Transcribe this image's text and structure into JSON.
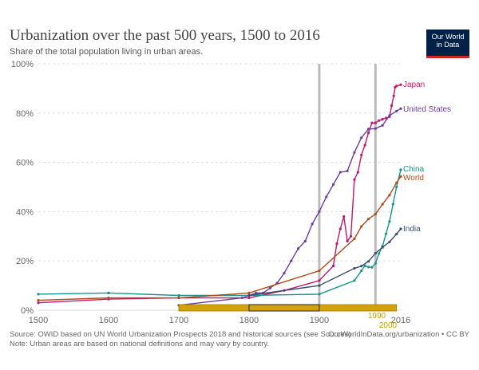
{
  "header": {
    "title": "Urbanization over the past 500 years, 1500 to 2016",
    "subtitle": "Share of the total population living in urban areas.",
    "logo_line1": "Our World",
    "logo_line2": "in Data"
  },
  "footer": {
    "source": "Source: OWID based on UN World Urbanization Prospects 2018 and historical sources (see Sources)",
    "note": "Note: Urban areas are based on national definitions and may vary by country.",
    "url": "OurWorldInData.org/urbanization • CC BY"
  },
  "colors": {
    "Japan": "#c2186b",
    "United States": "#6b3e9e",
    "China": "#16958f",
    "World": "#b04a1a",
    "India": "#3d4c6f",
    "timeline": "#d4a20c",
    "marker": "#bbbbbb"
  },
  "timeline": {
    "start_label": "1990",
    "end_label": "2000",
    "range_start": 1700,
    "range_end": 2010,
    "highlight_start": 1800,
    "highlight_end": 1900
  },
  "chart_data": {
    "type": "line",
    "x_range": [
      1500,
      2016
    ],
    "ylim": [
      0,
      100
    ],
    "y_ticks": [
      "0%",
      "20%",
      "40%",
      "60%",
      "80%",
      "100%"
    ],
    "y_tick_values": [
      0,
      20,
      40,
      60,
      80,
      100
    ],
    "x_ticks": [
      "1500",
      "1600",
      "1700",
      "1800",
      "1900",
      "2016"
    ],
    "x_tick_values": [
      1500,
      1600,
      1700,
      1800,
      1900,
      2016
    ],
    "marker_lines": [
      1900,
      1980
    ],
    "series": [
      {
        "name": "Japan",
        "points": [
          [
            1500,
            3
          ],
          [
            1600,
            4.5
          ],
          [
            1700,
            5
          ],
          [
            1800,
            5
          ],
          [
            1850,
            8
          ],
          [
            1900,
            12
          ],
          [
            1920,
            18
          ],
          [
            1925,
            27
          ],
          [
            1930,
            33
          ],
          [
            1935,
            38
          ],
          [
            1940,
            28
          ],
          [
            1945,
            30
          ],
          [
            1950,
            53
          ],
          [
            1955,
            56
          ],
          [
            1960,
            63
          ],
          [
            1965,
            67
          ],
          [
            1970,
            72
          ],
          [
            1975,
            76
          ],
          [
            1980,
            76
          ],
          [
            1985,
            77
          ],
          [
            1990,
            77.5
          ],
          [
            1995,
            78
          ],
          [
            2000,
            78.5
          ],
          [
            2003,
            83
          ],
          [
            2006,
            87
          ],
          [
            2008,
            90.5
          ],
          [
            2010,
            91
          ],
          [
            2016,
            91.5
          ]
        ]
      },
      {
        "name": "United States",
        "points": [
          [
            1700,
            2
          ],
          [
            1790,
            5
          ],
          [
            1800,
            6
          ],
          [
            1810,
            7
          ],
          [
            1820,
            7
          ],
          [
            1830,
            9
          ],
          [
            1840,
            11
          ],
          [
            1850,
            15
          ],
          [
            1860,
            20
          ],
          [
            1870,
            25
          ],
          [
            1880,
            28
          ],
          [
            1890,
            35
          ],
          [
            1900,
            40
          ],
          [
            1910,
            46
          ],
          [
            1920,
            51
          ],
          [
            1930,
            56
          ],
          [
            1940,
            56.5
          ],
          [
            1950,
            64
          ],
          [
            1960,
            70
          ],
          [
            1970,
            73.5
          ],
          [
            1980,
            73.7
          ],
          [
            1990,
            75
          ],
          [
            2000,
            79
          ],
          [
            2010,
            80.8
          ],
          [
            2016,
            81.8
          ]
        ]
      },
      {
        "name": "China",
        "points": [
          [
            1500,
            6.5
          ],
          [
            1600,
            7
          ],
          [
            1700,
            6
          ],
          [
            1800,
            6
          ],
          [
            1900,
            6.5
          ],
          [
            1950,
            12
          ],
          [
            1960,
            16
          ],
          [
            1965,
            18
          ],
          [
            1970,
            17.5
          ],
          [
            1975,
            17.4
          ],
          [
            1980,
            19
          ],
          [
            1985,
            23
          ],
          [
            1990,
            26
          ],
          [
            1995,
            31
          ],
          [
            2000,
            36
          ],
          [
            2005,
            43
          ],
          [
            2010,
            50
          ],
          [
            2016,
            57
          ]
        ]
      },
      {
        "name": "World",
        "points": [
          [
            1500,
            4
          ],
          [
            1600,
            5
          ],
          [
            1700,
            5
          ],
          [
            1800,
            7
          ],
          [
            1900,
            16
          ],
          [
            1950,
            29
          ],
          [
            1960,
            34
          ],
          [
            1970,
            37
          ],
          [
            1980,
            39
          ],
          [
            1990,
            43
          ],
          [
            2000,
            46.7
          ],
          [
            2010,
            51.7
          ],
          [
            2016,
            54.3
          ]
        ]
      },
      {
        "name": "India",
        "points": [
          [
            1800,
            6
          ],
          [
            1900,
            10
          ],
          [
            1950,
            17
          ],
          [
            1960,
            17.9
          ],
          [
            1970,
            19.8
          ],
          [
            1980,
            23.1
          ],
          [
            1990,
            25.5
          ],
          [
            2000,
            27.7
          ],
          [
            2010,
            30.9
          ],
          [
            2016,
            33
          ]
        ]
      }
    ]
  }
}
